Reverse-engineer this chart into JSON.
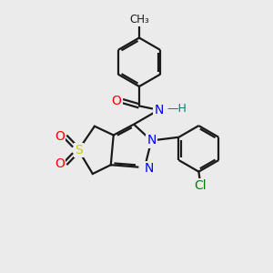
{
  "background_color": "#ebebeb",
  "bond_color": "#1a1a1a",
  "bond_width": 1.6,
  "label_colors": {
    "O": "#ff0000",
    "N": "#0000ff",
    "S": "#cccc00",
    "H": "#008080",
    "Cl": "#008000",
    "C": "#1a1a1a"
  },
  "figsize": [
    3.0,
    3.0
  ],
  "dpi": 100
}
